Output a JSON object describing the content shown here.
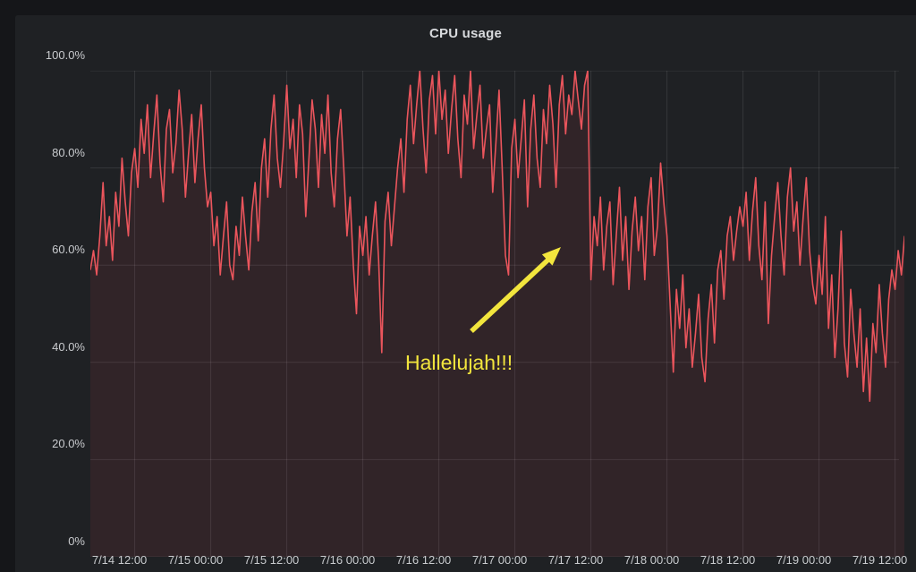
{
  "panel": {
    "title": "CPU usage"
  },
  "annotation": {
    "text": "Hallelujah!!!",
    "color": "#f2e53d",
    "points_at": "sharp drop at 7/17 12:00"
  },
  "colors": {
    "background": "#151619",
    "panel_background": "#1f2124",
    "series_line": "#ea555c",
    "series_fill": "rgba(242,73,92,0.085)",
    "gridline": "rgba(255,255,255,0.10)",
    "tick_text": "#c9cbce",
    "annotation_yellow": "#f2e53d"
  },
  "chart_data": {
    "type": "line",
    "title": "CPU usage",
    "xlabel": "",
    "ylabel": "",
    "ylim": [
      0,
      100
    ],
    "grid": true,
    "legend_position": "none",
    "y_tick_labels": [
      "0%",
      "20.0%",
      "40.0%",
      "60.0%",
      "80.0%",
      "100.0%"
    ],
    "x_tick_labels": [
      "7/14 12:00",
      "7/15 00:00",
      "7/15 12:00",
      "7/16 00:00",
      "7/16 12:00",
      "7/17 00:00",
      "7/17 12:00",
      "7/18 00:00",
      "7/18 12:00",
      "7/19 00:00",
      "7/19 12:00"
    ],
    "x_sampling": {
      "start": "7/14 ~05:00",
      "step_minutes": 30,
      "first_tick_index": 14,
      "points_per_tick_interval": 24
    },
    "series": [
      {
        "name": "CPU usage (%)",
        "color": "#ea555c",
        "values": [
          59,
          63,
          58,
          66,
          77,
          64,
          70,
          61,
          75,
          68,
          82,
          73,
          66,
          79,
          84,
          76,
          90,
          83,
          93,
          78,
          87,
          95,
          81,
          73,
          88,
          92,
          79,
          85,
          96,
          88,
          74,
          83,
          91,
          77,
          86,
          93,
          80,
          72,
          75,
          64,
          70,
          58,
          66,
          73,
          60,
          57,
          68,
          62,
          74,
          66,
          59,
          71,
          77,
          65,
          80,
          86,
          74,
          88,
          95,
          82,
          76,
          85,
          97,
          84,
          90,
          78,
          93,
          87,
          70,
          82,
          94,
          88,
          76,
          91,
          83,
          95,
          79,
          72,
          86,
          92,
          80,
          66,
          74,
          60,
          50,
          68,
          62,
          70,
          58,
          66,
          73,
          61,
          42,
          69,
          75,
          64,
          72,
          80,
          86,
          75,
          90,
          97,
          85,
          93,
          100,
          88,
          79,
          94,
          99,
          87,
          100,
          90,
          96,
          83,
          92,
          99,
          86,
          78,
          95,
          89,
          100,
          84,
          91,
          97,
          82,
          88,
          93,
          75,
          85,
          96,
          80,
          62,
          58,
          84,
          90,
          78,
          86,
          94,
          72,
          88,
          95,
          82,
          76,
          92,
          85,
          97,
          89,
          76,
          93,
          99,
          87,
          95,
          91,
          100,
          94,
          88,
          97,
          100,
          57,
          70,
          64,
          74,
          59,
          68,
          73,
          56,
          66,
          76,
          61,
          70,
          55,
          67,
          74,
          63,
          70,
          57,
          72,
          78,
          62,
          68,
          81,
          73,
          66,
          52,
          38,
          55,
          47,
          58,
          43,
          51,
          39,
          46,
          54,
          41,
          36,
          49,
          56,
          44,
          59,
          63,
          53,
          66,
          70,
          61,
          67,
          72,
          68,
          75,
          61,
          71,
          78,
          64,
          57,
          73,
          48,
          62,
          70,
          77,
          66,
          58,
          74,
          80,
          67,
          73,
          60,
          70,
          78,
          63,
          56,
          52,
          62,
          54,
          70,
          47,
          58,
          41,
          51,
          67,
          44,
          37,
          55,
          46,
          39,
          51,
          34,
          45,
          32,
          48,
          42,
          56,
          46,
          39,
          53,
          59,
          55,
          63,
          58,
          66
        ]
      }
    ]
  }
}
